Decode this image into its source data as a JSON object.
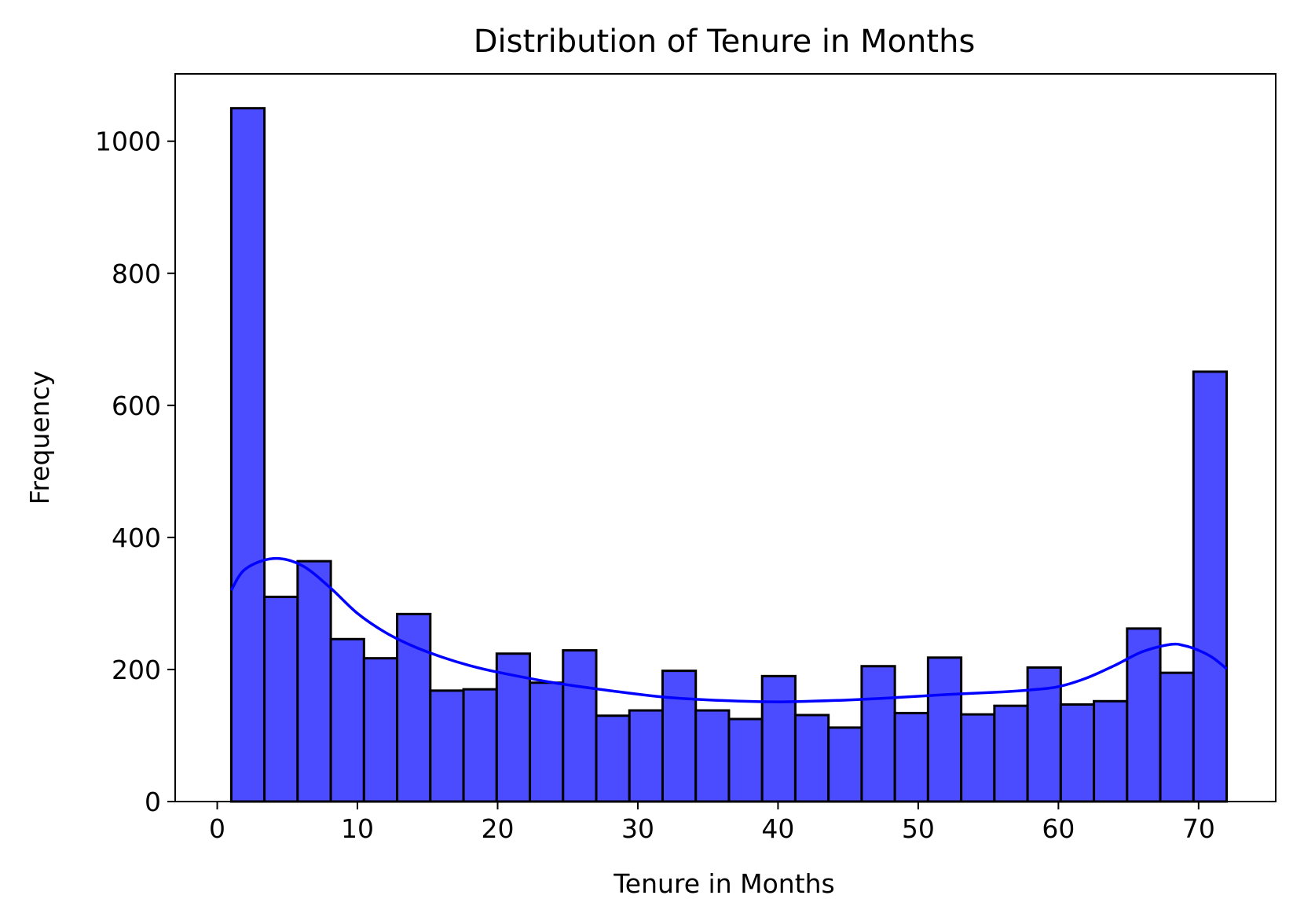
{
  "chart_data": {
    "type": "bar",
    "title": "Distribution of Tenure in Months",
    "xlabel": "Tenure in Months",
    "ylabel": "Frequency",
    "xlim": [
      -3,
      75.5
    ],
    "ylim": [
      0,
      1102
    ],
    "x_ticks": [
      0,
      10,
      20,
      30,
      40,
      50,
      60,
      70
    ],
    "y_ticks": [
      0,
      200,
      400,
      600,
      800,
      1000
    ],
    "bin_start": 1,
    "bin_end": 72,
    "bin_count": 30,
    "values": [
      1050,
      310,
      364,
      246,
      217,
      284,
      168,
      170,
      224,
      180,
      229,
      130,
      138,
      198,
      138,
      125,
      190,
      131,
      112,
      205,
      134,
      218,
      132,
      145,
      203,
      147,
      152,
      262,
      195,
      651
    ],
    "kde": {
      "x": [
        1,
        2,
        4,
        6,
        8,
        10,
        12,
        14,
        16,
        18,
        20,
        24,
        28,
        32,
        36,
        40,
        44,
        48,
        52,
        56,
        58,
        60,
        62,
        64,
        66,
        68,
        69,
        70,
        71,
        72
      ],
      "y": [
        320,
        352,
        368,
        358,
        325,
        285,
        256,
        235,
        219,
        206,
        196,
        180,
        168,
        158,
        153,
        151,
        153,
        157,
        162,
        166,
        169,
        174,
        187,
        206,
        227,
        238,
        236,
        229,
        218,
        201
      ]
    },
    "grid": false,
    "legend": "none",
    "bar_color": "#4b4bff",
    "bar_edge_color": "#000000",
    "kde_color": "#0000ff"
  }
}
